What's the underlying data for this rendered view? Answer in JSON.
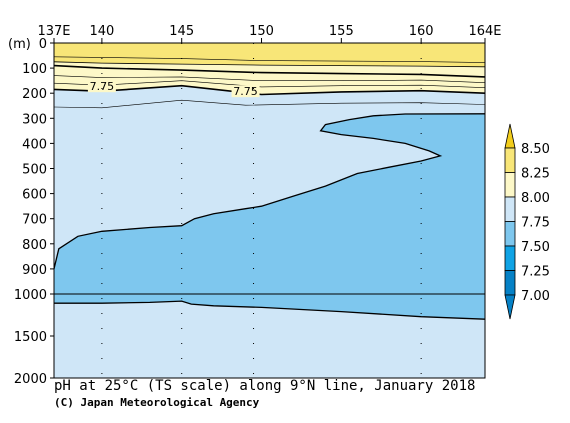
{
  "chart_data": {
    "type": "heatmap",
    "title": "pH at 25°C (TS scale) along 9°N line, January 2018",
    "credit": "(C) Japan Meteorological Agency",
    "x_ticks": [
      {
        "value": 137,
        "label": "137E"
      },
      {
        "value": 140,
        "label": "140"
      },
      {
        "value": 145,
        "label": "145"
      },
      {
        "value": 150,
        "label": "150"
      },
      {
        "value": 155,
        "label": "155"
      },
      {
        "value": 160,
        "label": "160"
      },
      {
        "value": 164,
        "label": "164E"
      }
    ],
    "xlim": [
      137,
      164
    ],
    "y_unit": "(m)",
    "y_ticks_upper": [
      0,
      100,
      200,
      300,
      400,
      500,
      600,
      700,
      800,
      900,
      1000
    ],
    "y_ticks_lower": [
      1500,
      2000
    ],
    "y_ticks_lower_labels": [
      "1000",
      "1500",
      "2000"
    ],
    "colorbar": {
      "levels": [
        "8.50",
        "8.25",
        "8.00",
        "7.75",
        "7.50",
        "7.25",
        "7.00"
      ],
      "colors": [
        "#f2cd1b",
        "#f8e678",
        "#fdf8c8",
        "#cfe6f7",
        "#7ec7ee",
        "#10a3e5",
        "#0581c6"
      ]
    },
    "contour_labels": [
      {
        "lon": 140,
        "depth": 180,
        "text": "7.75"
      },
      {
        "lon": 149,
        "depth": 200,
        "text": "7.75"
      }
    ],
    "station_lons": [
      140,
      145,
      149.5,
      160
    ]
  }
}
